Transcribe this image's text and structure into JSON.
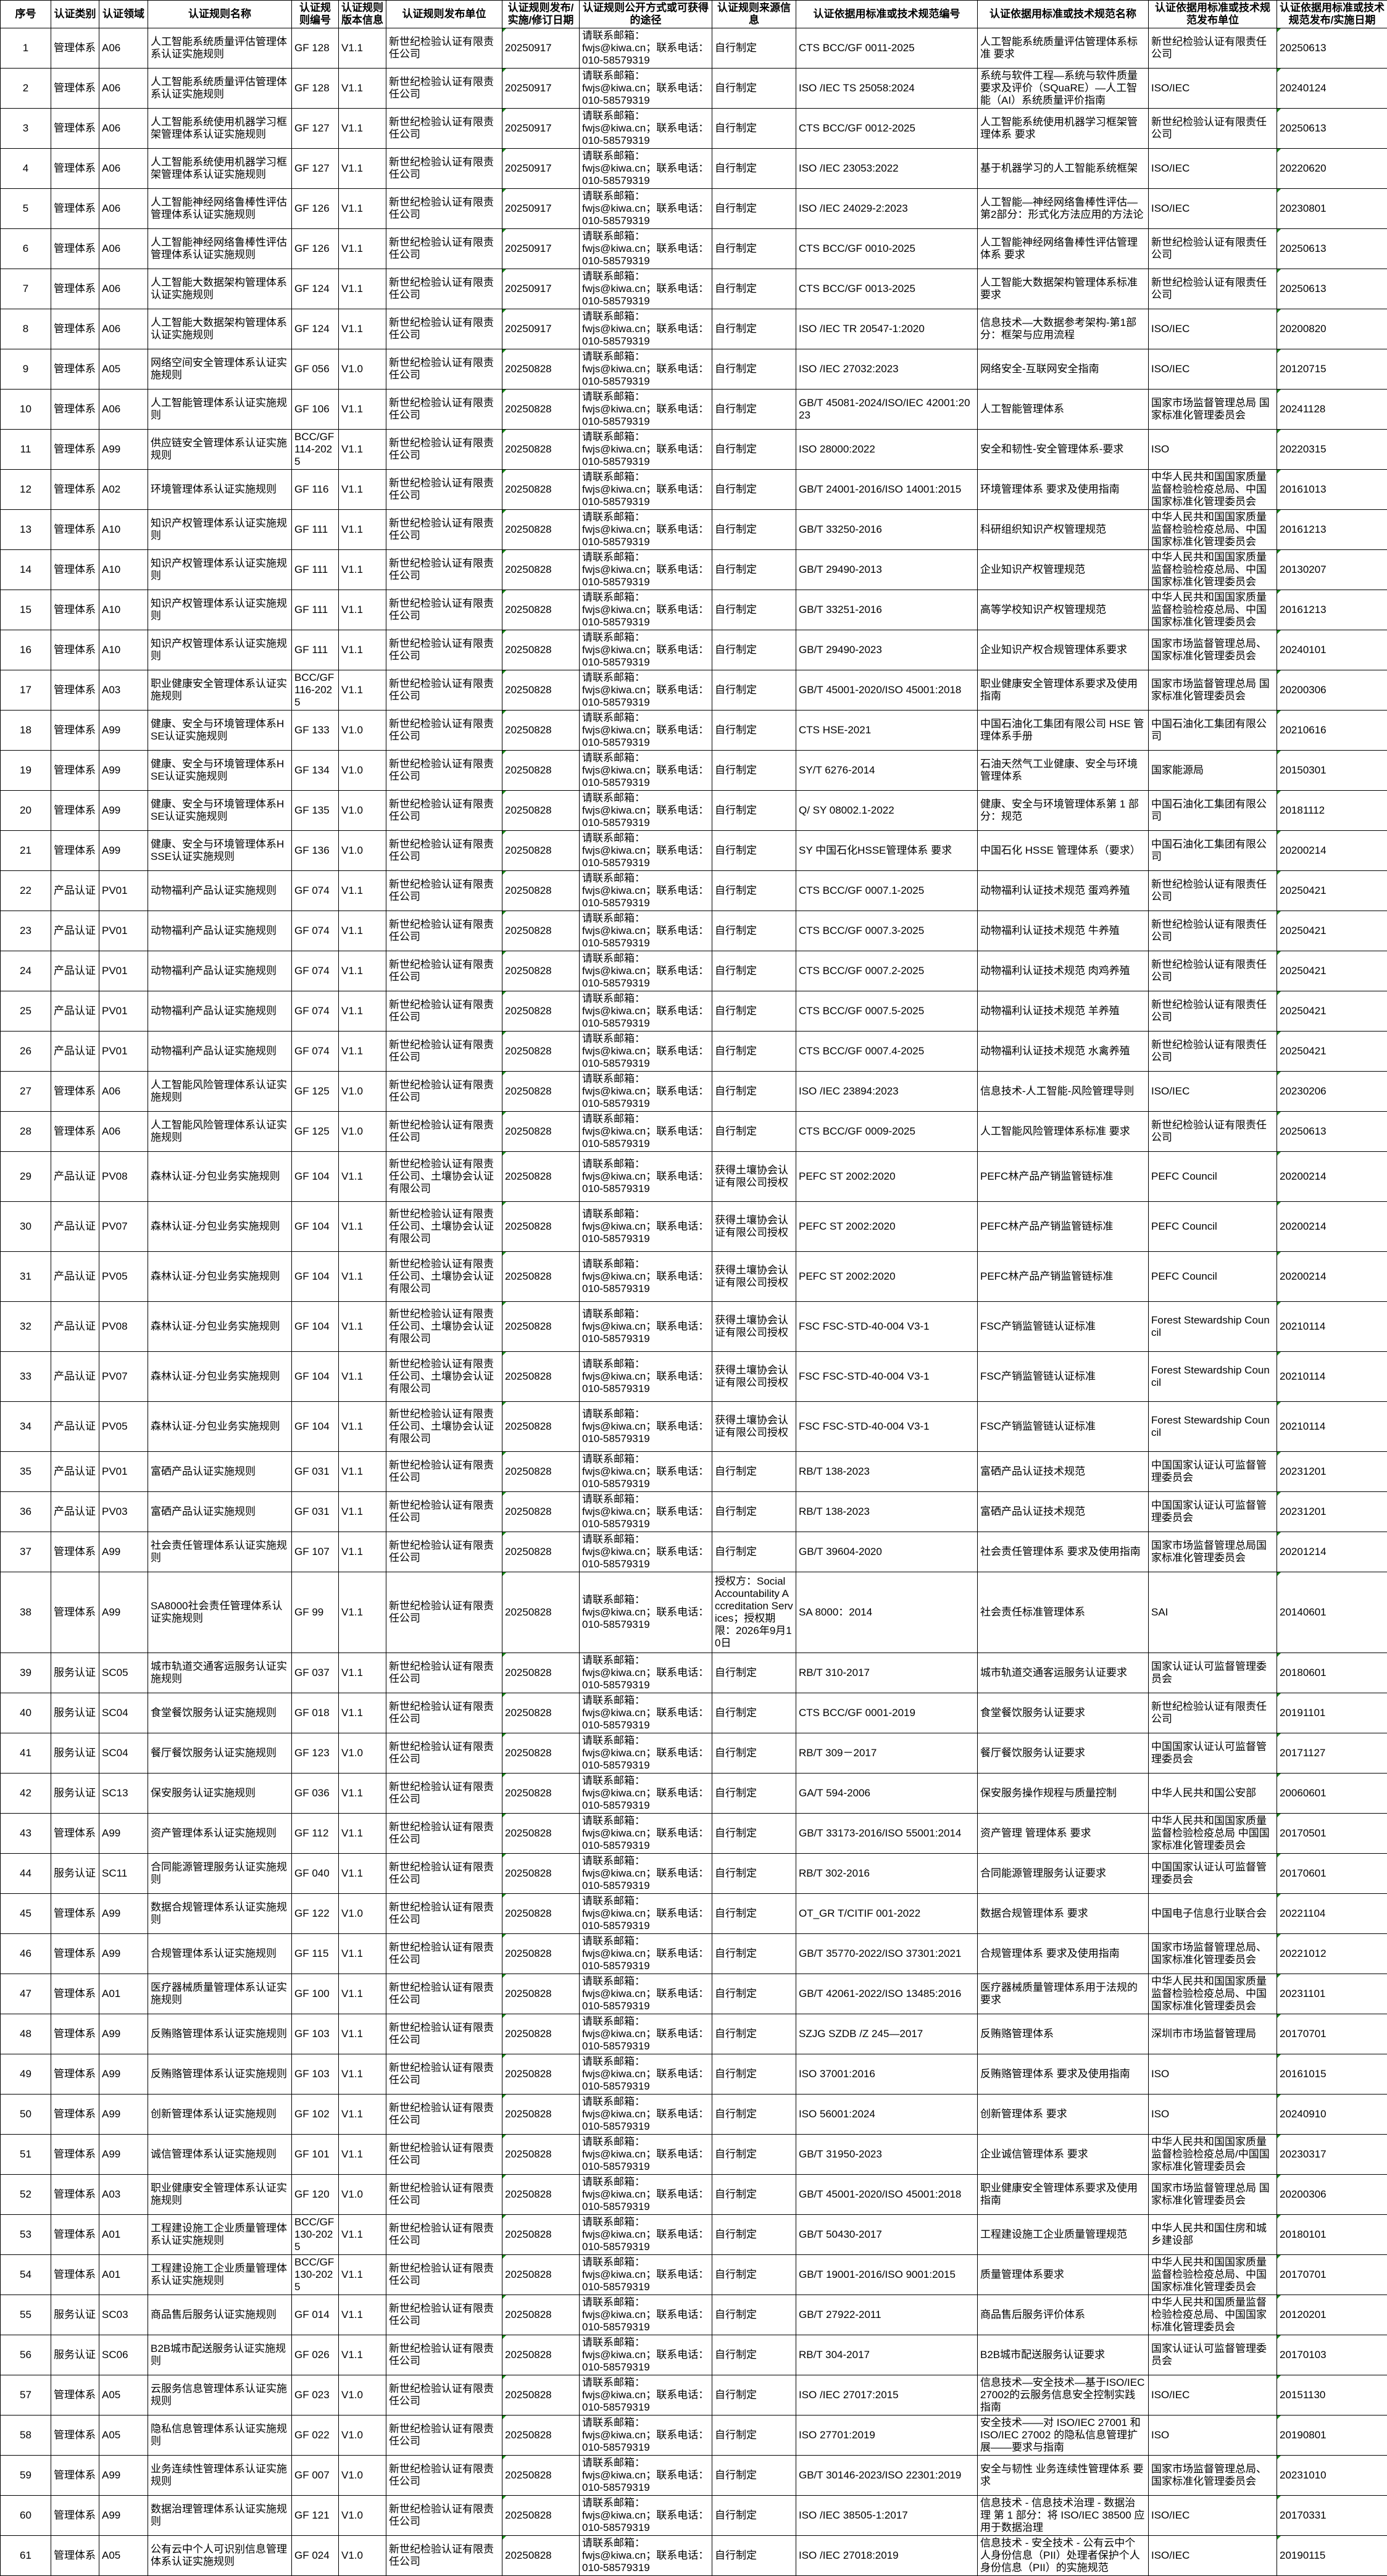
{
  "headers": [
    "序号",
    "认证类别",
    "认证领域",
    "认证规则名称",
    "认证规则编号",
    "认证规则版本信息",
    "认证规则发布单位",
    "认证规则发布/实施/修订日期",
    "认证规则公开方式或可获得的途径",
    "认证规则来源信息",
    "认证依据用标准或技术规范编号",
    "认证依据用标准或技术规范名称",
    "认证依据用标准或技术规范发布单位",
    "认证依据用标准或技术规范发布/实施日期"
  ],
  "colors": {
    "border": "#000000",
    "date_marker": "#1a8a1a"
  },
  "rows": [
    [
      "1",
      "管理体系",
      "A06",
      "人工智能系统质量评估管理体系认证实施规则",
      "GF 128",
      "V1.1",
      "新世纪检验认证有限责任公司",
      "20250917",
      "请联系邮箱：\nfwjs@kiwa.cn；联系电话：\n010-58579319",
      "自行制定",
      "CTS BCC/GF 0011-2025",
      "人工智能系统质量评估管理体系标准 要求",
      "新世纪检验认证有限责任公司",
      "20250613"
    ],
    [
      "2",
      "管理体系",
      "A06",
      "人工智能系统质量评估管理体系认证实施规则",
      "GF 128",
      "V1.1",
      "新世纪检验认证有限责任公司",
      "20250917",
      "请联系邮箱：\nfwjs@kiwa.cn；联系电话：\n010-58579319",
      "自行制定",
      "ISO /IEC TS 25058:2024",
      "系统与软件工程—系统与软件质量要求及评价（SQuaRE）—人工智能（AI）系统质量评价指南",
      "ISO/IEC",
      "20240124"
    ],
    [
      "3",
      "管理体系",
      "A06",
      "人工智能系统使用机器学习框架管理体系认证实施规则",
      "GF 127",
      "V1.1",
      "新世纪检验认证有限责任公司",
      "20250917",
      "请联系邮箱：\nfwjs@kiwa.cn；联系电话：\n010-58579319",
      "自行制定",
      "CTS BCC/GF 0012-2025",
      "人工智能系统使用机器学习框架管理体系 要求",
      "新世纪检验认证有限责任公司",
      "20250613"
    ],
    [
      "4",
      "管理体系",
      "A06",
      "人工智能系统使用机器学习框架管理体系认证实施规则",
      "GF 127",
      "V1.1",
      "新世纪检验认证有限责任公司",
      "20250917",
      "请联系邮箱：\nfwjs@kiwa.cn；联系电话：\n010-58579319",
      "自行制定",
      "ISO /IEC 23053:2022",
      "基于机器学习的人工智能系统框架",
      "ISO/IEC",
      "20220620"
    ],
    [
      "5",
      "管理体系",
      "A06",
      "人工智能神经网络鲁棒性评估管理体系认证实施规则",
      "GF 126",
      "V1.1",
      "新世纪检验认证有限责任公司",
      "20250917",
      "请联系邮箱：\nfwjs@kiwa.cn；联系电话：\n010-58579319",
      "自行制定",
      "ISO /IEC 24029-2:2023",
      "人工智能—神经网络鲁棒性评估—第2部分：形式化方法应用的方法论",
      "ISO/IEC",
      "20230801"
    ],
    [
      "6",
      "管理体系",
      "A06",
      "人工智能神经网络鲁棒性评估管理体系认证实施规则",
      "GF 126",
      "V1.1",
      "新世纪检验认证有限责任公司",
      "20250917",
      "请联系邮箱：\nfwjs@kiwa.cn；联系电话：\n010-58579319",
      "自行制定",
      "CTS BCC/GF 0010-2025",
      "人工智能神经网络鲁棒性评估管理体系 要求",
      "新世纪检验认证有限责任公司",
      "20250613"
    ],
    [
      "7",
      "管理体系",
      "A06",
      "人工智能大数据架构管理体系认证实施规则",
      "GF 124",
      "V1.1",
      "新世纪检验认证有限责任公司",
      "20250917",
      "请联系邮箱：\nfwjs@kiwa.cn；联系电话：\n010-58579319",
      "自行制定",
      "CTS BCC/GF 0013-2025",
      "人工智能大数据架构管理体系标准 要求",
      "新世纪检验认证有限责任公司",
      "20250613"
    ],
    [
      "8",
      "管理体系",
      "A06",
      "人工智能大数据架构管理体系认证实施规则",
      "GF 124",
      "V1.1",
      "新世纪检验认证有限责任公司",
      "20250917",
      "请联系邮箱：\nfwjs@kiwa.cn；联系电话：\n010-58579319",
      "自行制定",
      "ISO /IEC TR 20547-1:2020",
      "信息技术—大数据参考架构-第1部分：框架与应用流程",
      "ISO/IEC",
      "20200820"
    ],
    [
      "9",
      "管理体系",
      "A05",
      "网络空间安全管理体系认证实施规则",
      "GF 056",
      "V1.0",
      "新世纪检验认证有限责任公司",
      "20250828",
      "请联系邮箱：\nfwjs@kiwa.cn；联系电话：\n010-58579319",
      "自行制定",
      "ISO /IEC 27032:2023",
      "网络安全-互联网安全指南",
      "ISO/IEC",
      "20120715"
    ],
    [
      "10",
      "管理体系",
      "A06",
      "人工智能管理体系认证实施规则",
      "GF 106",
      "V1.1",
      "新世纪检验认证有限责任公司",
      "20250828",
      "请联系邮箱：\nfwjs@kiwa.cn；联系电话：\n010-58579319",
      "自行制定",
      "GB/T 45081-2024/ISO/IEC 42001:2023",
      "人工智能管理体系",
      "国家市场监督管理总局 国家标准化管理委员会",
      "20241128"
    ],
    [
      "11",
      "管理体系",
      "A99",
      "供应链安全管理体系认证实施规则",
      "BCC/GF 114-2025",
      "V1.1",
      "新世纪检验认证有限责任公司",
      "20250828",
      "请联系邮箱：\nfwjs@kiwa.cn；联系电话：\n010-58579319",
      "自行制定",
      "ISO 28000:2022",
      "安全和韧性-安全管理体系-要求",
      "ISO",
      "20220315"
    ],
    [
      "12",
      "管理体系",
      "A02",
      "环境管理体系认证实施规则",
      "GF 116",
      "V1.1",
      "新世纪检验认证有限责任公司",
      "20250828",
      "请联系邮箱：\nfwjs@kiwa.cn；联系电话：\n010-58579319",
      "自行制定",
      "GB/T 24001-2016/ISO 14001:2015",
      "环境管理体系 要求及使用指南",
      "中华人民共和国国家质量监督检验检疫总局、中国国家标准化管理委员会",
      "20161013"
    ],
    [
      "13",
      "管理体系",
      "A10",
      "知识产权管理体系认证实施规则",
      "GF 111",
      "V1.1",
      "新世纪检验认证有限责任公司",
      "20250828",
      "请联系邮箱：\nfwjs@kiwa.cn；联系电话：\n010-58579319",
      "自行制定",
      "GB/T 33250-2016",
      "科研组织知识产权管理规范",
      "中华人民共和国国家质量监督检验检疫总局、中国国家标准化管理委员会",
      "20161213"
    ],
    [
      "14",
      "管理体系",
      "A10",
      "知识产权管理体系认证实施规则",
      "GF 111",
      "V1.1",
      "新世纪检验认证有限责任公司",
      "20250828",
      "请联系邮箱：\nfwjs@kiwa.cn；联系电话：\n010-58579319",
      "自行制定",
      "GB/T 29490-2013",
      "企业知识产权管理规范",
      "中华人民共和国国家质量监督检验检疫总局、中国国家标准化管理委员会",
      "20130207"
    ],
    [
      "15",
      "管理体系",
      "A10",
      "知识产权管理体系认证实施规则",
      "GF 111",
      "V1.1",
      "新世纪检验认证有限责任公司",
      "20250828",
      "请联系邮箱：\nfwjs@kiwa.cn；联系电话：\n010-58579319",
      "自行制定",
      "GB/T 33251-2016",
      "高等学校知识产权管理规范",
      "中华人民共和国国家质量监督检验检疫总局、中国国家标准化管理委员会",
      "20161213"
    ],
    [
      "16",
      "管理体系",
      "A10",
      "知识产权管理体系认证实施规则",
      "GF 111",
      "V1.1",
      "新世纪检验认证有限责任公司",
      "20250828",
      "请联系邮箱：\nfwjs@kiwa.cn；联系电话：\n010-58579319",
      "自行制定",
      "GB/T 29490-2023",
      "企业知识产权合规管理体系要求",
      "国家市场监督管理总局、国家标准化管理委员会",
      "20240101"
    ],
    [
      "17",
      "管理体系",
      "A03",
      "职业健康安全管理体系认证实施规则",
      "BCC/GF 116-2025",
      "V1.1",
      "新世纪检验认证有限责任公司",
      "20250828",
      "请联系邮箱：\nfwjs@kiwa.cn；联系电话：\n010-58579319",
      "自行制定",
      "GB/T 45001-2020/ISO 45001:2018",
      "职业健康安全管理体系要求及使用指南",
      "国家市场监督管理总局 国家标准化管理委员会",
      "20200306"
    ],
    [
      "18",
      "管理体系",
      "A99",
      "健康、安全与环境管理体系HSE认证实施规则",
      "GF 133",
      "V1.0",
      "新世纪检验认证有限责任公司",
      "20250828",
      "请联系邮箱：\nfwjs@kiwa.cn；联系电话：\n010-58579319",
      "自行制定",
      "CTS HSE-2021",
      "中国石油化工集团有限公司 HSE 管理体系手册",
      "中国石油化工集团有限公司",
      "20210616"
    ],
    [
      "19",
      "管理体系",
      "A99",
      "健康、安全与环境管理体系HSE认证实施规则",
      "GF 134",
      "V1.0",
      "新世纪检验认证有限责任公司",
      "20250828",
      "请联系邮箱：\nfwjs@kiwa.cn；联系电话：\n010-58579319",
      "自行制定",
      "SY/T 6276-2014",
      "石油天然气工业健康、安全与环境管理体系",
      "国家能源局",
      "20150301"
    ],
    [
      "20",
      "管理体系",
      "A99",
      "健康、安全与环境管理体系HSE认证实施规则",
      "GF 135",
      "V1.0",
      "新世纪检验认证有限责任公司",
      "20250828",
      "请联系邮箱：\nfwjs@kiwa.cn；联系电话：\n010-58579319",
      "自行制定",
      "Q/ SY 08002.1-2022",
      "健康、安全与环境管理体系第 1 部分：规范",
      "中国石油化工集团有限公司",
      "20181112"
    ],
    [
      "21",
      "管理体系",
      "A99",
      "健康、安全与环境管理体系HSSE认证实施规则",
      "GF 136",
      "V1.0",
      "新世纪检验认证有限责任公司",
      "20250828",
      "请联系邮箱：\nfwjs@kiwa.cn；联系电话：\n010-58579319",
      "自行制定",
      "SY 中国石化HSSE管理体系 要求",
      "中国石化 HSSE 管理体系（要求）",
      "中国石油化工集团有限公司",
      "20200214"
    ],
    [
      "22",
      "产品认证",
      "PV01",
      "动物福利产品认证实施规则",
      "GF 074",
      "V1.1",
      "新世纪检验认证有限责任公司",
      "20250828",
      "请联系邮箱：\nfwjs@kiwa.cn；联系电话：\n010-58579319",
      "自行制定",
      "CTS BCC/GF 0007.1-2025",
      "动物福利认证技术规范  蛋鸡养殖",
      "新世纪检验认证有限责任公司",
      "20250421"
    ],
    [
      "23",
      "产品认证",
      "PV01",
      "动物福利产品认证实施规则",
      "GF 074",
      "V1.1",
      "新世纪检验认证有限责任公司",
      "20250828",
      "请联系邮箱：\nfwjs@kiwa.cn；联系电话：\n010-58579319",
      "自行制定",
      "CTS BCC/GF 0007.3-2025",
      "动物福利认证技术规范  牛养殖",
      "新世纪检验认证有限责任公司",
      "20250421"
    ],
    [
      "24",
      "产品认证",
      "PV01",
      "动物福利产品认证实施规则",
      "GF 074",
      "V1.1",
      "新世纪检验认证有限责任公司",
      "20250828",
      "请联系邮箱：\nfwjs@kiwa.cn；联系电话：\n010-58579319",
      "自行制定",
      "CTS BCC/GF 0007.2-2025",
      "动物福利认证技术规范  肉鸡养殖",
      "新世纪检验认证有限责任公司",
      "20250421"
    ],
    [
      "25",
      "产品认证",
      "PV01",
      "动物福利产品认证实施规则",
      "GF 074",
      "V1.1",
      "新世纪检验认证有限责任公司",
      "20250828",
      "请联系邮箱：\nfwjs@kiwa.cn；联系电话：\n010-58579319",
      "自行制定",
      "CTS BCC/GF 0007.5-2025",
      "动物福利认证技术规范  羊养殖",
      "新世纪检验认证有限责任公司",
      "20250421"
    ],
    [
      "26",
      "产品认证",
      "PV01",
      "动物福利产品认证实施规则",
      "GF 074",
      "V1.1",
      "新世纪检验认证有限责任公司",
      "20250828",
      "请联系邮箱：\nfwjs@kiwa.cn；联系电话：\n010-58579319",
      "自行制定",
      "CTS BCC/GF 0007.4-2025",
      "动物福利认证技术规范  水禽养殖",
      "新世纪检验认证有限责任公司",
      "20250421"
    ],
    [
      "27",
      "管理体系",
      "A06",
      "人工智能风险管理体系认证实施规则",
      "GF 125",
      "V1.0",
      "新世纪检验认证有限责任公司",
      "20250828",
      "请联系邮箱：\nfwjs@kiwa.cn；联系电话：\n010-58579319",
      "自行制定",
      "ISO /IEC 23894:2023",
      "信息技术-人工智能-风险管理导则",
      "ISO/IEC",
      "20230206"
    ],
    [
      "28",
      "管理体系",
      "A06",
      "人工智能风险管理体系认证实施规则",
      "GF 125",
      "V1.0",
      "新世纪检验认证有限责任公司",
      "20250828",
      "请联系邮箱：\nfwjs@kiwa.cn；联系电话：\n010-58579319",
      "自行制定",
      "CTS BCC/GF 0009-2025",
      "人工智能风险管理体系标准 要求",
      "新世纪检验认证有限责任公司",
      "20250613"
    ],
    [
      "29",
      "产品认证",
      "PV08",
      "森林认证-分包业务实施规则",
      "GF 104",
      "V1.1",
      "新世纪检验认证有限责任公司、土壤协会认证有限公司",
      "20250828",
      "请联系邮箱：\nfwjs@kiwa.cn；联系电话：\n010-58579319",
      "获得土壤协会认证有限公司授权",
      "PEFC ST 2002:2020",
      "PEFC林产品产销监管链标准",
      "PEFC Council",
      "20200214"
    ],
    [
      "30",
      "产品认证",
      "PV07",
      "森林认证-分包业务实施规则",
      "GF 104",
      "V1.1",
      "新世纪检验认证有限责任公司、土壤协会认证有限公司",
      "20250828",
      "请联系邮箱：\nfwjs@kiwa.cn；联系电话：\n010-58579319",
      "获得土壤协会认证有限公司授权",
      "PEFC ST 2002:2020",
      "PEFC林产品产销监管链标准",
      "PEFC Council",
      "20200214"
    ],
    [
      "31",
      "产品认证",
      "PV05",
      "森林认证-分包业务实施规则",
      "GF 104",
      "V1.1",
      "新世纪检验认证有限责任公司、土壤协会认证有限公司",
      "20250828",
      "请联系邮箱：\nfwjs@kiwa.cn；联系电话：\n010-58579319",
      "获得土壤协会认证有限公司授权",
      "PEFC ST 2002:2020",
      "PEFC林产品产销监管链标准",
      "PEFC Council",
      "20200214"
    ],
    [
      "32",
      "产品认证",
      "PV08",
      "森林认证-分包业务实施规则",
      "GF 104",
      "V1.1",
      "新世纪检验认证有限责任公司、土壤协会认证有限公司",
      "20250828",
      "请联系邮箱：\nfwjs@kiwa.cn；联系电话：\n010-58579319",
      "获得土壤协会认证有限公司授权",
      "FSC FSC-STD-40-004 V3-1",
      "FSC产销监管链认证标准",
      "Forest Stewardship Council",
      "20210114"
    ],
    [
      "33",
      "产品认证",
      "PV07",
      "森林认证-分包业务实施规则",
      "GF 104",
      "V1.1",
      "新世纪检验认证有限责任公司、土壤协会认证有限公司",
      "20250828",
      "请联系邮箱：\nfwjs@kiwa.cn；联系电话：\n010-58579319",
      "获得土壤协会认证有限公司授权",
      "FSC FSC-STD-40-004 V3-1",
      "FSC产销监管链认证标准",
      "Forest Stewardship Council",
      "20210114"
    ],
    [
      "34",
      "产品认证",
      "PV05",
      "森林认证-分包业务实施规则",
      "GF 104",
      "V1.1",
      "新世纪检验认证有限责任公司、土壤协会认证有限公司",
      "20250828",
      "请联系邮箱：\nfwjs@kiwa.cn；联系电话：\n010-58579319",
      "获得土壤协会认证有限公司授权",
      "FSC FSC-STD-40-004 V3-1",
      "FSC产销监管链认证标准",
      "Forest Stewardship Council",
      "20210114"
    ],
    [
      "35",
      "产品认证",
      "PV01",
      "富硒产品认证实施规则",
      "GF 031",
      "V1.1",
      "新世纪检验认证有限责任公司",
      "20250828",
      "请联系邮箱：\nfwjs@kiwa.cn；联系电话：\n010-58579319",
      "自行制定",
      "RB/T 138-2023",
      "富硒产品认证技术规范",
      "中国国家认证认可监督管理委员会",
      "20231201"
    ],
    [
      "36",
      "产品认证",
      "PV03",
      "富硒产品认证实施规则",
      "GF 031",
      "V1.1",
      "新世纪检验认证有限责任公司",
      "20250828",
      "请联系邮箱：\nfwjs@kiwa.cn；联系电话：\n010-58579319",
      "自行制定",
      "RB/T 138-2023",
      "富硒产品认证技术规范",
      "中国国家认证认可监督管理委员会",
      "20231201"
    ],
    [
      "37",
      "管理体系",
      "A99",
      "社会责任管理体系认证实施规则",
      "GF 107",
      "V1.1",
      "新世纪检验认证有限责任公司",
      "20250828",
      "请联系邮箱：\nfwjs@kiwa.cn；联系电话：\n010-58579319",
      "自行制定",
      "GB/T 39604-2020",
      "社会责任管理体系 要求及使用指南",
      "国家市场监督管理总局国家标准化管理委员会",
      "20201214"
    ],
    [
      "38",
      "管理体系",
      "A99",
      "SA8000社会责任管理体系认证实施规则",
      "GF 99",
      "V1.1",
      "新世纪检验认证有限责任公司",
      "20250828",
      "请联系邮箱：\nfwjs@kiwa.cn；联系电话：\n010-58579319",
      "授权方：Social Accountability Accreditation Services；授权期限：2026年9月10日",
      "SA 8000：2014",
      "社会责任标准管理体系",
      "SAI",
      "20140601"
    ],
    [
      "39",
      "服务认证",
      "SC05",
      "城市轨道交通客运服务认证实施规则",
      "GF 037",
      "V1.1",
      "新世纪检验认证有限责任公司",
      "20250828",
      "请联系邮箱：\nfwjs@kiwa.cn；联系电话：\n010-58579319",
      "自行制定",
      "RB/T 310-2017",
      "城市轨道交通客运服务认证要求",
      "国家认证认可监督管理委员会",
      "20180601"
    ],
    [
      "40",
      "服务认证",
      "SC04",
      "食堂餐饮服务认证实施规则",
      "GF 018",
      "V1.1",
      "新世纪检验认证有限责任公司",
      "20250828",
      "请联系邮箱：\nfwjs@kiwa.cn；联系电话：\n010-58579319",
      "自行制定",
      "CTS BCC/GF 0001-2019",
      "食堂餐饮服务认证要求",
      "新世纪检验认证有限责任公司",
      "20191101"
    ],
    [
      "41",
      "服务认证",
      "SC04",
      "餐厅餐饮服务认证实施规则",
      "GF 123",
      "V1.0",
      "新世纪检验认证有限责任公司",
      "20250828",
      "请联系邮箱：\nfwjs@kiwa.cn；联系电话：\n010-58579319",
      "自行制定",
      "RB/T 309－2017",
      "餐厅餐饮服务认证要求",
      "中国国家认证认可监督管理委员会",
      "20171127"
    ],
    [
      "42",
      "服务认证",
      "SC13",
      "保安服务认证实施规则",
      "GF 036",
      "V1.1",
      "新世纪检验认证有限责任公司",
      "20250828",
      "请联系邮箱：\nfwjs@kiwa.cn；联系电话：\n010-58579319",
      "自行制定",
      "GA/T 594-2006",
      "保安服务操作规程与质量控制",
      "中华人民共和国公安部",
      "20060601"
    ],
    [
      "43",
      "管理体系",
      "A99",
      "资产管理体系认证实施规则",
      "GF 112",
      "V1.1",
      "新世纪检验认证有限责任公司",
      "20250828",
      "请联系邮箱：\nfwjs@kiwa.cn；联系电话：\n010-58579319",
      "自行制定",
      "GB/T 33173-2016/ISO 55001:2014",
      "资产管理 管理体系 要求",
      "中华人民共和国国家质量监督检验检疫总局 中国国家标准化管理委员会",
      "20170501"
    ],
    [
      "44",
      "服务认证",
      "SC11",
      "合同能源管理服务认证实施规则",
      "GF 040",
      "V1.1",
      "新世纪检验认证有限责任公司",
      "20250828",
      "请联系邮箱：\nfwjs@kiwa.cn；联系电话：\n010-58579319",
      "自行制定",
      "RB/T 302-2016",
      "合同能源管理服务认证要求",
      "中国国家认证认可监督管理委员会",
      "20170601"
    ],
    [
      "45",
      "管理体系",
      "A99",
      "数据合规管理体系认证实施规则",
      "GF 122",
      "V1.0",
      "新世纪检验认证有限责任公司",
      "20250828",
      "请联系邮箱：\nfwjs@kiwa.cn；联系电话：\n010-58579319",
      "自行制定",
      "OT_GR T/CITIF 001-2022",
      "数据合规管理体系 要求",
      "中国电子信息行业联合会",
      "20221104"
    ],
    [
      "46",
      "管理体系",
      "A99",
      "合规管理体系认证实施规则",
      "GF 115",
      "V1.1",
      "新世纪检验认证有限责任公司",
      "20250828",
      "请联系邮箱：\nfwjs@kiwa.cn；联系电话：\n010-58579319",
      "自行制定",
      "GB/T 35770-2022/ISO 37301:2021",
      "合规管理体系 要求及使用指南",
      "国家市场监督管理总局、国家标准化管理委员会",
      "20221012"
    ],
    [
      "47",
      "管理体系",
      "A01",
      "医疗器械质量管理体系认证实施规则",
      "GF 100",
      "V1.1",
      "新世纪检验认证有限责任公司",
      "20250828",
      "请联系邮箱：\nfwjs@kiwa.cn；联系电话：\n010-58579319",
      "自行制定",
      "GB/T 42061-2022/ISO 13485:2016",
      "医疗器械质量管理体系用于法规的要求",
      "中华人民共和国国家质量监督检验检疫总局、中国国家标准化管理委员会",
      "20231101"
    ],
    [
      "48",
      "管理体系",
      "A99",
      "反贿赂管理体系认证实施规则",
      "GF 103",
      "V1.1",
      "新世纪检验认证有限责任公司",
      "20250828",
      "请联系邮箱：\nfwjs@kiwa.cn；联系电话：\n010-58579319",
      "自行制定",
      "SZJG SZDB /Z 245—2017",
      "反贿赂管理体系",
      "深圳市市场监督管理局",
      "20170701"
    ],
    [
      "49",
      "管理体系",
      "A99",
      "反贿赂管理体系认证实施规则",
      "GF 103",
      "V1.1",
      "新世纪检验认证有限责任公司",
      "20250828",
      "请联系邮箱：\nfwjs@kiwa.cn；联系电话：\n010-58579319",
      "自行制定",
      "ISO 37001:2016",
      "反贿赂管理体系 要求及使用指南",
      "ISO",
      "20161015"
    ],
    [
      "50",
      "管理体系",
      "A99",
      "创新管理体系认证实施规则",
      "GF 102",
      "V1.1",
      "新世纪检验认证有限责任公司",
      "20250828",
      "请联系邮箱：\nfwjs@kiwa.cn；联系电话：\n010-58579319",
      "自行制定",
      "ISO 56001:2024",
      "创新管理体系 要求",
      "ISO",
      "20240910"
    ],
    [
      "51",
      "管理体系",
      "A99",
      "诚信管理体系认证实施规则",
      "GF 101",
      "V1.1",
      "新世纪检验认证有限责任公司",
      "20250828",
      "请联系邮箱：\nfwjs@kiwa.cn；联系电话：\n010-58579319",
      "自行制定",
      "GB/T 31950-2023",
      "企业诚信管理体系 要求",
      "中华人民共和国国家质量监督检验检疫总局/中国国家标准化管理委员会",
      "20230317"
    ],
    [
      "52",
      "管理体系",
      "A03",
      "职业健康安全管理体系认证实施规则",
      "GF 120",
      "V1.0",
      "新世纪检验认证有限责任公司",
      "20250828",
      "请联系邮箱：\nfwjs@kiwa.cn；联系电话：\n010-58579319",
      "自行制定",
      "GB/T 45001-2020/ISO 45001:2018",
      "职业健康安全管理体系要求及使用指南",
      "国家市场监督管理总局 国家标准化管理委员会",
      "20200306"
    ],
    [
      "53",
      "管理体系",
      "A01",
      "工程建设施工企业质量管理体系认证实施规则",
      "BCC/GF 130-2025",
      "V1.1",
      "新世纪检验认证有限责任公司",
      "20250828",
      "请联系邮箱：\nfwjs@kiwa.cn；联系电话：\n010-58579319",
      "自行制定",
      "GB/T 50430-2017",
      "工程建设施工企业质量管理规范",
      "中华人民共和国住房和城乡建设部",
      "20180101"
    ],
    [
      "54",
      "管理体系",
      "A01",
      "工程建设施工企业质量管理体系认证实施规则",
      "BCC/GF 130-2025",
      "V1.1",
      "新世纪检验认证有限责任公司",
      "20250828",
      "请联系邮箱：\nfwjs@kiwa.cn；联系电话：\n010-58579319",
      "自行制定",
      "GB/T 19001-2016/ISO 9001:2015",
      "质量管理体系要求",
      "中华人民共和国国家质量监督检验检疫总局、中国国家标准化管理委员会",
      "20170701"
    ],
    [
      "55",
      "服务认证",
      "SC03",
      "商品售后服务认证实施规则",
      "GF 014",
      "V1.1",
      "新世纪检验认证有限责任公司",
      "20250828",
      "请联系邮箱：\nfwjs@kiwa.cn；联系电话：\n010-58579319",
      "自行制定",
      "GB/T 27922-2011",
      "商品售后服务评价体系",
      "中华人民共和国质量监督检验检疫总局、中国国家标准化管理委员会",
      "20120201"
    ],
    [
      "56",
      "服务认证",
      "SC06",
      "B2B城市配送服务认证实施规则",
      "GF 026",
      "V1.1",
      "新世纪检验认证有限责任公司",
      "20250828",
      "请联系邮箱：\nfwjs@kiwa.cn；联系电话：\n010-58579319",
      "自行制定",
      "RB/T 304-2017",
      "B2B城市配送服务认证要求",
      "国家认证认可监督管理委员会",
      "20170103"
    ],
    [
      "57",
      "管理体系",
      "A05",
      "云服务信息管理体系认证实施规则",
      "GF 023",
      "V1.0",
      "新世纪检验认证有限责任公司",
      "20250828",
      "请联系邮箱：\nfwjs@kiwa.cn；联系电话：\n010-58579319",
      "自行制定",
      "ISO /IEC 27017:2015",
      "信息技术—安全技术—基于ISO/IEC 27002的云服务信息安全控制实践指南",
      "ISO/IEC",
      "20151130"
    ],
    [
      "58",
      "管理体系",
      "A05",
      "隐私信息管理体系认证实施规则",
      "GF 022",
      "V1.0",
      "新世纪检验认证有限责任公司",
      "20250828",
      "请联系邮箱：\nfwjs@kiwa.cn；联系电话：\n010-58579319",
      "自行制定",
      "ISO 27701:2019",
      "安全技术——对 ISO/IEC 27001 和 ISO/IEC 27002 的隐私信息管理扩展——要求与指南",
      "ISO",
      "20190801"
    ],
    [
      "59",
      "管理体系",
      "A99",
      "业务连续性管理体系认证实施规则",
      "GF 007",
      "V1.0",
      "新世纪检验认证有限责任公司",
      "20250828",
      "请联系邮箱：\nfwjs@kiwa.cn；联系电话：\n010-58579319",
      "自行制定",
      "GB/T 30146-2023/ISO 22301:2019",
      "安全与韧性 业务连续性管理体系 要求",
      "国家市场监督管理总局、国家标准化管理委员会",
      "20231010"
    ],
    [
      "60",
      "管理体系",
      "A99",
      "数据治理管理体系认证实施规则",
      "GF 121",
      "V1.0",
      "新世纪检验认证有限责任公司",
      "20250828",
      "请联系邮箱：\nfwjs@kiwa.cn；联系电话：\n010-58579319",
      "自行制定",
      "ISO /IEC 38505-1:2017",
      "信息技术 - 信息技术治理 - 数据治理 第 1 部分：将 ISO/IEC 38500 应用于数据治理",
      "ISO/IEC",
      "20170331"
    ],
    [
      "61",
      "管理体系",
      "A05",
      "公有云中个人可识别信息管理体系认证实施规则",
      "GF 024",
      "V1.0",
      "新世纪检验认证有限责任公司",
      "20250828",
      "请联系邮箱：\nfwjs@kiwa.cn；联系电话：\n010-58579319",
      "自行制定",
      "ISO /IEC 27018:2019",
      "信息技术 - 安全技术 - 公有云中个人身份信息（PII）处理者保护个人身份信息（PII）的实施规范",
      "ISO/IEC",
      "20190115"
    ]
  ]
}
